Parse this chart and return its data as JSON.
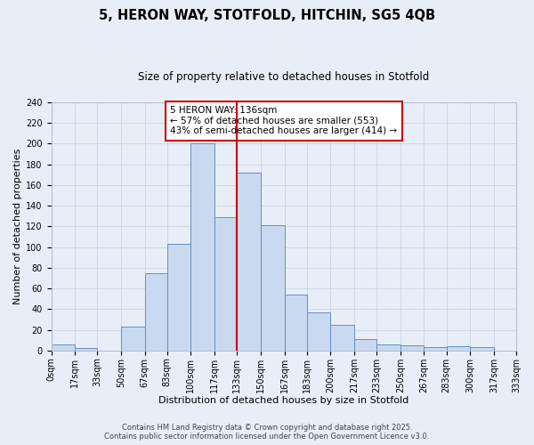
{
  "title": "5, HERON WAY, STOTFOLD, HITCHIN, SG5 4QB",
  "subtitle": "Size of property relative to detached houses in Stotfold",
  "xlabel": "Distribution of detached houses by size in Stotfold",
  "ylabel": "Number of detached properties",
  "bin_labels": [
    "0sqm",
    "17sqm",
    "33sqm",
    "50sqm",
    "67sqm",
    "83sqm",
    "100sqm",
    "117sqm",
    "133sqm",
    "150sqm",
    "167sqm",
    "183sqm",
    "200sqm",
    "217sqm",
    "233sqm",
    "250sqm",
    "267sqm",
    "283sqm",
    "300sqm",
    "317sqm",
    "333sqm"
  ],
  "bin_edges": [
    0,
    17,
    33,
    50,
    67,
    83,
    100,
    117,
    133,
    150,
    167,
    183,
    200,
    217,
    233,
    250,
    267,
    283,
    300,
    317,
    333
  ],
  "bar_heights": [
    6,
    2,
    0,
    23,
    75,
    103,
    200,
    129,
    172,
    121,
    54,
    37,
    25,
    11,
    6,
    5,
    3,
    4,
    3,
    0
  ],
  "bar_facecolor": "#c9d9f0",
  "bar_edgecolor": "#6690c4",
  "vline_x": 133,
  "vline_color": "#cc0000",
  "annotation_line1": "5 HERON WAY: 136sqm",
  "annotation_line2": "← 57% of detached houses are smaller (553)",
  "annotation_line3": "43% of semi-detached houses are larger (414) →",
  "annotation_facecolor": "white",
  "annotation_edgecolor": "#cc0000",
  "ylim": [
    0,
    240
  ],
  "yticks": [
    0,
    20,
    40,
    60,
    80,
    100,
    120,
    140,
    160,
    180,
    200,
    220,
    240
  ],
  "grid_color": "#c8d4e8",
  "background_color": "#e8eef8",
  "footer_line1": "Contains HM Land Registry data © Crown copyright and database right 2025.",
  "footer_line2": "Contains public sector information licensed under the Open Government Licence v3.0.",
  "title_fontsize": 10.5,
  "subtitle_fontsize": 8.5,
  "xlabel_fontsize": 8,
  "ylabel_fontsize": 8,
  "tick_fontsize": 7,
  "annotation_fontsize": 7.5,
  "footer_fontsize": 6
}
